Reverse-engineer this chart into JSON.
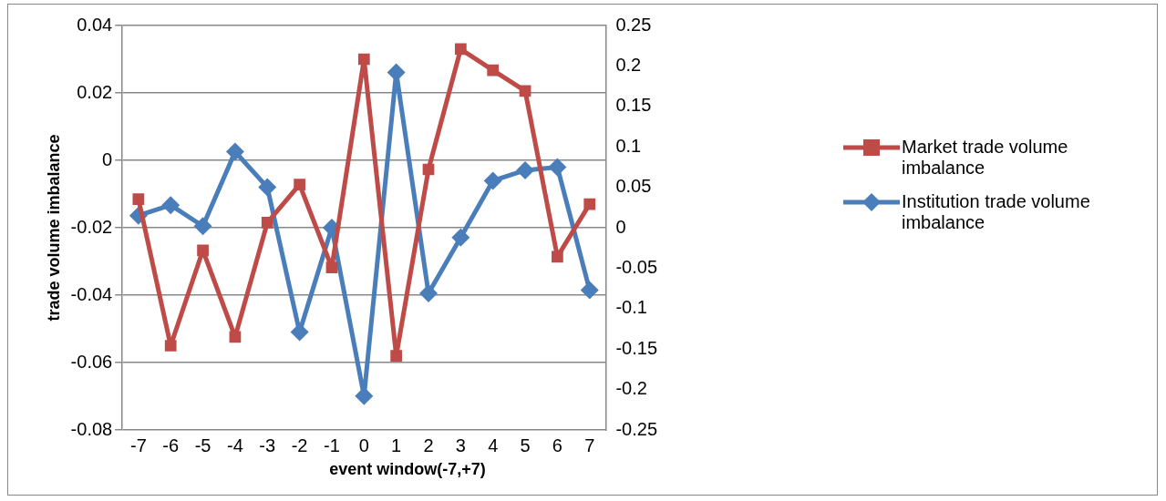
{
  "chart_data": {
    "type": "line",
    "xlabel": "event window(-7,+7)",
    "ylabel": "trade volume imbalance",
    "categories": [
      "-7",
      "-6",
      "-5",
      "-4",
      "-3",
      "-2",
      "-1",
      "0",
      "1",
      "2",
      "3",
      "4",
      "5",
      "6",
      "7"
    ],
    "series": [
      {
        "name": "Market trade volume imbalance",
        "color": "#be4b48",
        "marker": "square",
        "values": [
          -0.0115,
          -0.055,
          -0.0267,
          -0.0524,
          -0.0185,
          -0.0072,
          -0.0318,
          0.03,
          -0.058,
          -0.0027,
          0.033,
          0.0267,
          0.0206,
          -0.0286,
          -0.013
        ]
      },
      {
        "name": "Institution trade volume imbalance",
        "color": "#4a7ebb",
        "marker": "diamond",
        "axis": "y2",
        "values": [
          0.015,
          0.028,
          0.002,
          0.094,
          0.05,
          -0.129,
          0,
          -0.208,
          0.192,
          -0.081,
          -0.012,
          0.058,
          0.071,
          0.075,
          -0.077
        ]
      }
    ],
    "ylim": [
      -0.08,
      0.04
    ],
    "yticks": [
      -0.08,
      -0.06,
      -0.04,
      -0.02,
      0,
      0.02,
      0.04
    ],
    "y2lim": [
      -0.25,
      0.25
    ],
    "y2ticks": [
      -0.25,
      -0.2,
      -0.15,
      -0.1,
      -0.05,
      0,
      0.05,
      0.1,
      0.15,
      0.2,
      0.25
    ],
    "grid": "y",
    "legend": "right",
    "line_style": "solid"
  }
}
